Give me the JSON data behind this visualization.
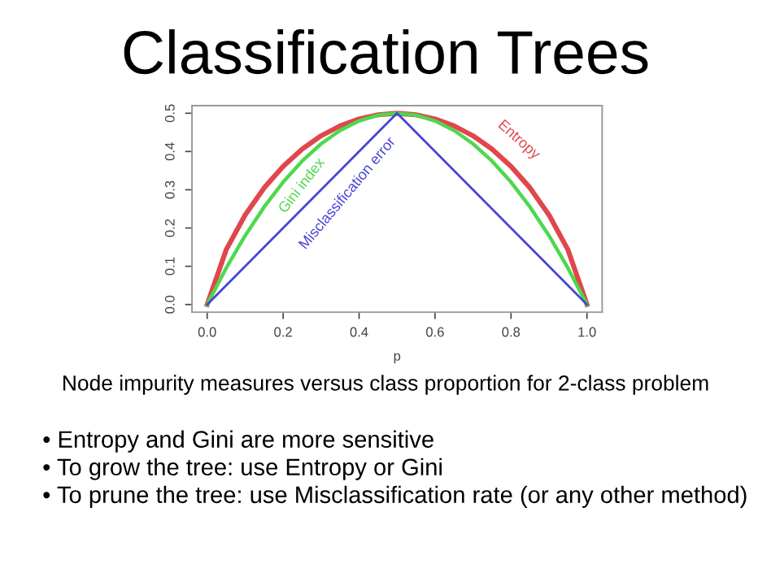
{
  "chart_data": {
    "type": "line",
    "title": "Classification Trees",
    "xlabel": "p",
    "xlim": [
      -0.04,
      1.04
    ],
    "ylim": [
      -0.02,
      0.52
    ],
    "xticks": [
      {
        "value": 0,
        "label": "0.0"
      },
      {
        "value": 0.2,
        "label": "0.2"
      },
      {
        "value": 0.4,
        "label": "0.4"
      },
      {
        "value": 0.6,
        "label": "0.6"
      },
      {
        "value": 0.8,
        "label": "0.8"
      },
      {
        "value": 1,
        "label": "1.0"
      }
    ],
    "yticks": [
      {
        "value": 0,
        "label": "0.0"
      },
      {
        "value": 0.1,
        "label": "0.1"
      },
      {
        "value": 0.2,
        "label": "0.2"
      },
      {
        "value": 0.3,
        "label": "0.3"
      },
      {
        "value": 0.4,
        "label": "0.4"
      },
      {
        "value": 0.5,
        "label": "0.5"
      }
    ],
    "grid": false,
    "legend": false,
    "line_style": "solid",
    "marker": "none",
    "series": [
      {
        "name": "Entropy",
        "color": "#e0474c",
        "x": [
          0,
          0.05,
          0.1,
          0.15,
          0.2,
          0.25,
          0.3,
          0.35,
          0.4,
          0.45,
          0.5,
          0.55,
          0.6,
          0.65,
          0.7,
          0.75,
          0.8,
          0.85,
          0.9,
          0.95,
          1
        ],
        "values": [
          0,
          0.143,
          0.234,
          0.305,
          0.361,
          0.406,
          0.441,
          0.467,
          0.485,
          0.496,
          0.5,
          0.496,
          0.485,
          0.467,
          0.441,
          0.406,
          0.361,
          0.305,
          0.234,
          0.143,
          0
        ]
      },
      {
        "name": "Gini index",
        "color": "#4ed84e",
        "x": [
          0,
          0.05,
          0.1,
          0.15,
          0.2,
          0.25,
          0.3,
          0.35,
          0.4,
          0.45,
          0.5,
          0.55,
          0.6,
          0.65,
          0.7,
          0.75,
          0.8,
          0.85,
          0.9,
          0.95,
          1
        ],
        "values": [
          0,
          0.095,
          0.18,
          0.255,
          0.32,
          0.375,
          0.42,
          0.455,
          0.48,
          0.495,
          0.5,
          0.495,
          0.48,
          0.455,
          0.42,
          0.375,
          0.32,
          0.255,
          0.18,
          0.095,
          0
        ]
      },
      {
        "name": "Misclassification error",
        "color": "#4646d2",
        "x": [
          0,
          0.5,
          1
        ],
        "values": [
          0,
          0.5,
          0
        ]
      }
    ],
    "annotations": [
      "Node impurity measures versus class proportion for 2-class problem",
      "• Entropy and Gini are more sensitive",
      "• To grow the tree: use Entropy or Gini",
      "• To prune the tree: use Misclassification rate (or any other method)"
    ]
  }
}
